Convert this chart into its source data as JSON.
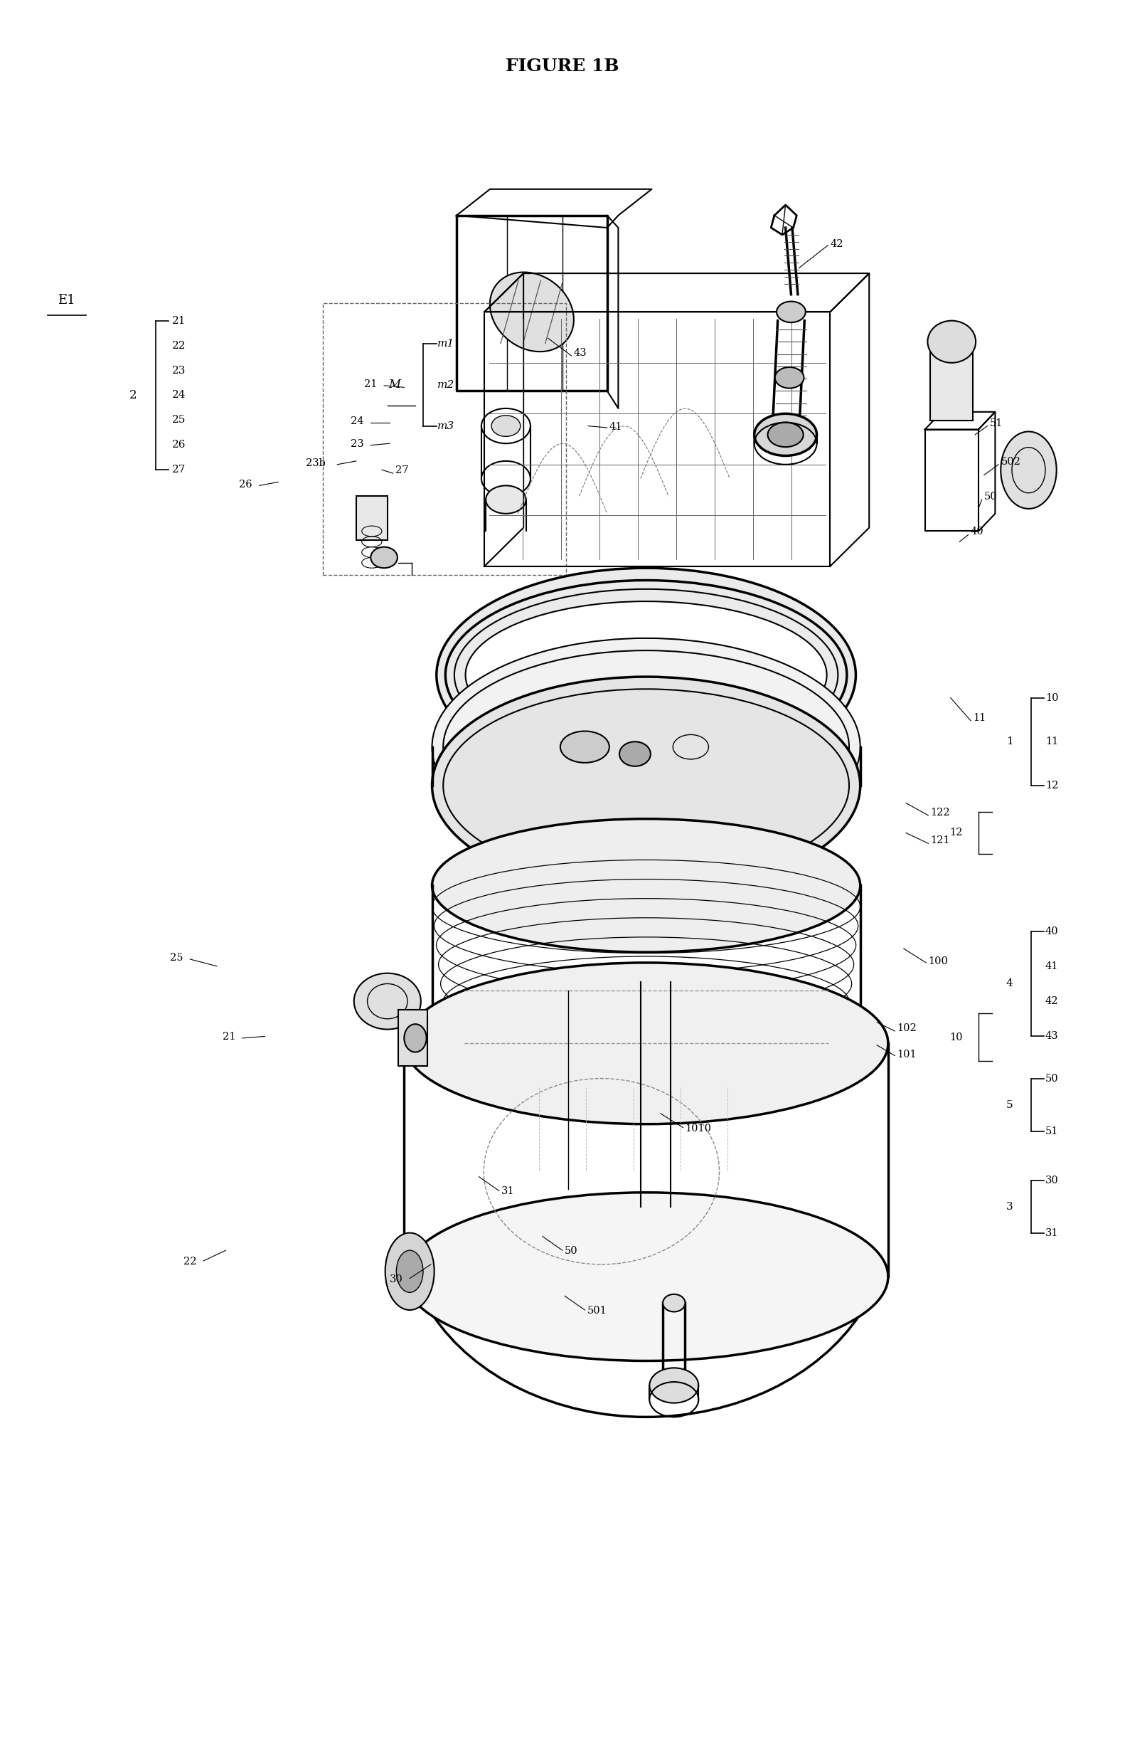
{
  "title": "FIGURE 1B",
  "bg_color": "#ffffff",
  "line_color": "#000000",
  "group2_items": [
    "21",
    "22",
    "23",
    "24",
    "25",
    "26",
    "27"
  ],
  "groupM_items": [
    "m1",
    "m2",
    "m3"
  ],
  "group1_items": [
    "10",
    "11",
    "12"
  ],
  "group4_items": [
    "40",
    "41",
    "42",
    "43"
  ],
  "group5_items": [
    "50",
    "51"
  ],
  "group3_items": [
    "30",
    "31"
  ]
}
